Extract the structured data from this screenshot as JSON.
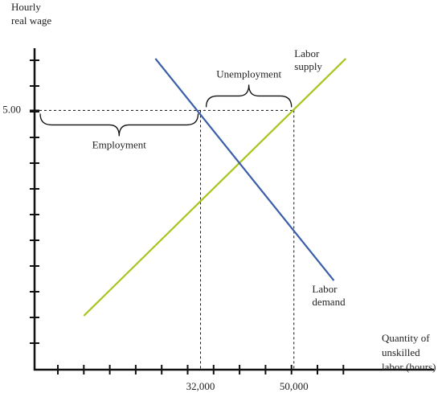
{
  "chart_data": {
    "type": "line",
    "ylabel": [
      "Hourly",
      "real wage"
    ],
    "xlabel": [
      "Quantity of",
      "unskilled",
      "labor (hours)"
    ],
    "xlim": [
      0,
      77000
    ],
    "ylim": [
      0,
      6.2
    ],
    "xticks": [
      {
        "value": 32000,
        "label": "32,000"
      },
      {
        "value": 50000,
        "label": "50,000"
      }
    ],
    "yticks": [
      {
        "value": 5,
        "label": "5.00"
      }
    ],
    "series": [
      {
        "name": "Labor supply",
        "color": "#a6c51f",
        "x": [
          9500,
          60000
        ],
        "values": [
          1.04,
          6.0
        ]
      },
      {
        "name": "Labor demand",
        "color": "#3b5ea8",
        "x": [
          23300,
          57700
        ],
        "values": [
          6.0,
          1.72
        ]
      }
    ],
    "annotations": [
      {
        "text": "Employment",
        "x": [
          0,
          32000
        ],
        "side": "below"
      },
      {
        "text": "Unemployment",
        "x": [
          32000,
          50000
        ],
        "side": "above"
      }
    ]
  }
}
